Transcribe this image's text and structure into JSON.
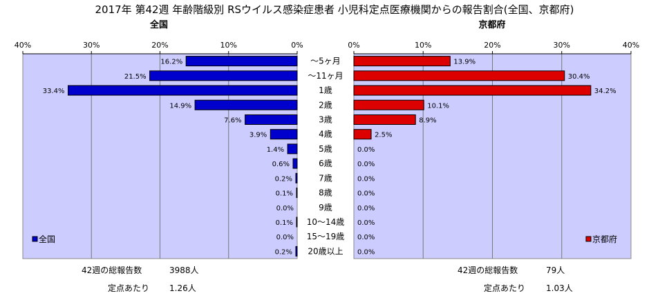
{
  "title": "2017年 第42週 年齢階級別 RSウイルス感染症患者 小児科定点医療機関からの報告割合(全国、京都府)",
  "colors": {
    "national": "#0000cc",
    "kyoto": "#dd0000",
    "plot_bg": "#ccccff"
  },
  "chart_data": [
    {
      "type": "bar",
      "orientation": "horizontal",
      "direction": "right-to-left",
      "title": "全国",
      "legend": {
        "label": "全国",
        "position": "bottom-left"
      },
      "xlim": [
        0,
        40
      ],
      "ticks": [
        "40%",
        "30%",
        "20%",
        "10%",
        "0%"
      ],
      "categories": [
        "～5ヶ月",
        "～11ヶ月",
        "1歳",
        "2歳",
        "3歳",
        "4歳",
        "5歳",
        "6歳",
        "7歳",
        "8歳",
        "9歳",
        "10～14歳",
        "15～19歳",
        "20歳以上"
      ],
      "values": [
        16.2,
        21.5,
        33.4,
        14.9,
        7.6,
        3.9,
        1.4,
        0.6,
        0.2,
        0.1,
        0.0,
        0.1,
        0.0,
        0.2
      ],
      "value_labels": [
        "16.2%",
        "21.5%",
        "33.4%",
        "14.9%",
        "7.6%",
        "3.9%",
        "1.4%",
        "0.6%",
        "0.2%",
        "0.1%",
        "0.0%",
        "0.1%",
        "0.0%",
        "0.2%"
      ],
      "grid": "vertical"
    },
    {
      "type": "bar",
      "orientation": "horizontal",
      "direction": "left-to-right",
      "title": "京都府",
      "legend": {
        "label": "京都府",
        "position": "bottom-right"
      },
      "xlim": [
        0,
        40
      ],
      "ticks": [
        "0%",
        "10%",
        "20%",
        "30%",
        "40%"
      ],
      "categories": [
        "～5ヶ月",
        "～11ヶ月",
        "1歳",
        "2歳",
        "3歳",
        "4歳",
        "5歳",
        "6歳",
        "7歳",
        "8歳",
        "9歳",
        "10～14歳",
        "15～19歳",
        "20歳以上"
      ],
      "values": [
        13.9,
        30.4,
        34.2,
        10.1,
        8.9,
        2.5,
        0.0,
        0.0,
        0.0,
        0.0,
        0.0,
        0.0,
        0.0,
        0.0
      ],
      "value_labels": [
        "13.9%",
        "30.4%",
        "34.2%",
        "10.1%",
        "8.9%",
        "2.5%",
        "0.0%",
        "0.0%",
        "0.0%",
        "0.0%",
        "0.0%",
        "0.0%",
        "0.0%",
        "0.0%"
      ],
      "grid": "vertical"
    }
  ],
  "footer": {
    "national": {
      "total_label": "42週の総報告数",
      "total_value": "3988人",
      "per_label": "定点あたり",
      "per_value": "1.26人"
    },
    "kyoto": {
      "total_label": "42週の総報告数",
      "total_value": "79人",
      "per_label": "定点あたり",
      "per_value": "1.03人"
    }
  }
}
